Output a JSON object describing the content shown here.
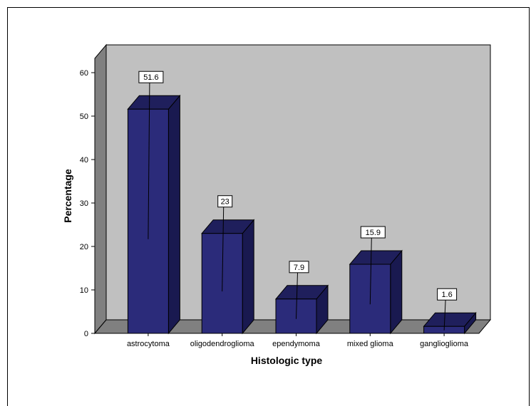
{
  "chart_data": {
    "type": "bar",
    "style": "3d",
    "categories": [
      "astrocytoma",
      "oligodendroglioma",
      "ependymoma",
      "mixed glioma",
      "ganglioglioma"
    ],
    "values": [
      51.6,
      23,
      7.9,
      15.9,
      1.6
    ],
    "data_labels": [
      "51.6",
      "23",
      "7.9",
      "15.9",
      "1.6"
    ],
    "title": "",
    "xlabel": "Histologic type",
    "ylabel": "Percentage",
    "ylim": [
      0,
      60
    ],
    "yticks": [
      "0",
      "10",
      "20",
      "30",
      "40",
      "50",
      "60"
    ],
    "grid": false,
    "legend": "none",
    "colors": {
      "bar_front": "#2b2b7a",
      "bar_top": "#1f1f5c",
      "bar_side": "#191950",
      "back_wall": "#c0c0c0",
      "side_wall": "#808080",
      "floor": "#808080"
    }
  }
}
